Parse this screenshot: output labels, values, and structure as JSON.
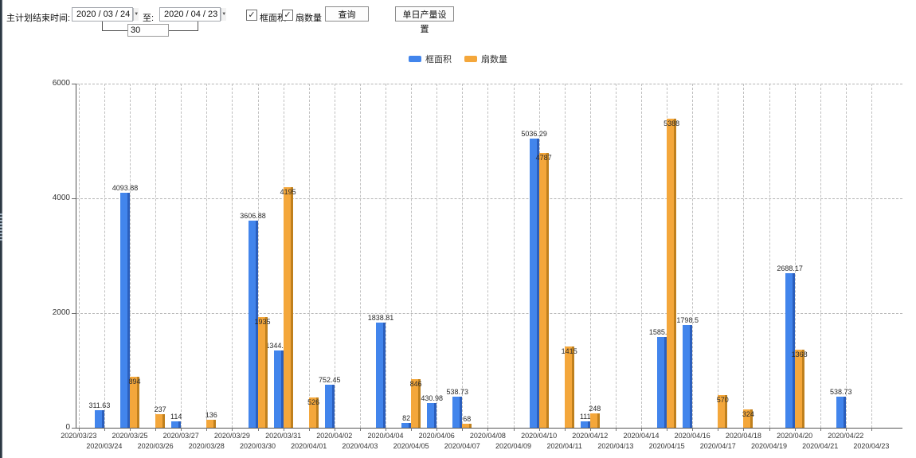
{
  "toolbar": {
    "end_time_label": "主计划结束时间:",
    "start_date": "2020 / 03 / 24",
    "to_label": "至:",
    "end_date": "2020 / 04 / 23",
    "interval_days": "30",
    "check_glyph": "✓",
    "dropdown_glyph": "▼",
    "checkboxes": [
      {
        "label": "框面积",
        "checked": true
      },
      {
        "label": "扇数量",
        "checked": true
      }
    ],
    "query_button": "查询",
    "daily_output_button": "单日产量设置"
  },
  "legend": {
    "items": [
      {
        "label": "框面积",
        "color": "#4285ec"
      },
      {
        "label": "扇数量",
        "color": "#f4a73b"
      }
    ]
  },
  "chart_data": {
    "type": "bar",
    "title": "",
    "xlabel": "",
    "ylabel": "",
    "ylim": [
      0,
      6000
    ],
    "yticks": [
      0,
      2000,
      4000,
      6000
    ],
    "grid": true,
    "legend_position": "top",
    "categories": [
      "2020/03/23",
      "2020/03/24",
      "2020/03/25",
      "2020/03/26",
      "2020/03/27",
      "2020/03/28",
      "2020/03/29",
      "2020/03/30",
      "2020/03/31",
      "2020/04/01",
      "2020/04/02",
      "2020/04/03",
      "2020/04/04",
      "2020/04/05",
      "2020/04/06",
      "2020/04/07",
      "2020/04/08",
      "2020/04/09",
      "2020/04/10",
      "2020/04/11",
      "2020/04/12",
      "2020/04/13",
      "2020/04/14",
      "2020/04/15",
      "2020/04/16",
      "2020/04/17",
      "2020/04/18",
      "2020/04/19",
      "2020/04/20",
      "2020/04/21",
      "2020/04/22",
      "2020/04/23"
    ],
    "series": [
      {
        "name": "框面积",
        "color": "#4285ec",
        "edge_color": "#2b5fbd",
        "values": [
          null,
          311.63,
          4093.88,
          null,
          114,
          null,
          null,
          3606.88,
          1344.95,
          null,
          752.45,
          null,
          1838.81,
          82,
          430.98,
          538.73,
          null,
          null,
          5036.29,
          null,
          111,
          null,
          null,
          1585.96,
          1798.5,
          null,
          null,
          null,
          2688.17,
          null,
          538.73,
          null
        ]
      },
      {
        "name": "扇数量",
        "color": "#f4a73b",
        "edge_color": "#c0801d",
        "values": [
          null,
          null,
          894,
          237,
          null,
          136,
          null,
          1935,
          4195,
          526,
          null,
          null,
          null,
          846,
          null,
          68,
          null,
          null,
          4787,
          1415,
          248,
          null,
          null,
          5388,
          null,
          570,
          324,
          null,
          1368,
          null,
          null,
          null
        ]
      }
    ]
  }
}
